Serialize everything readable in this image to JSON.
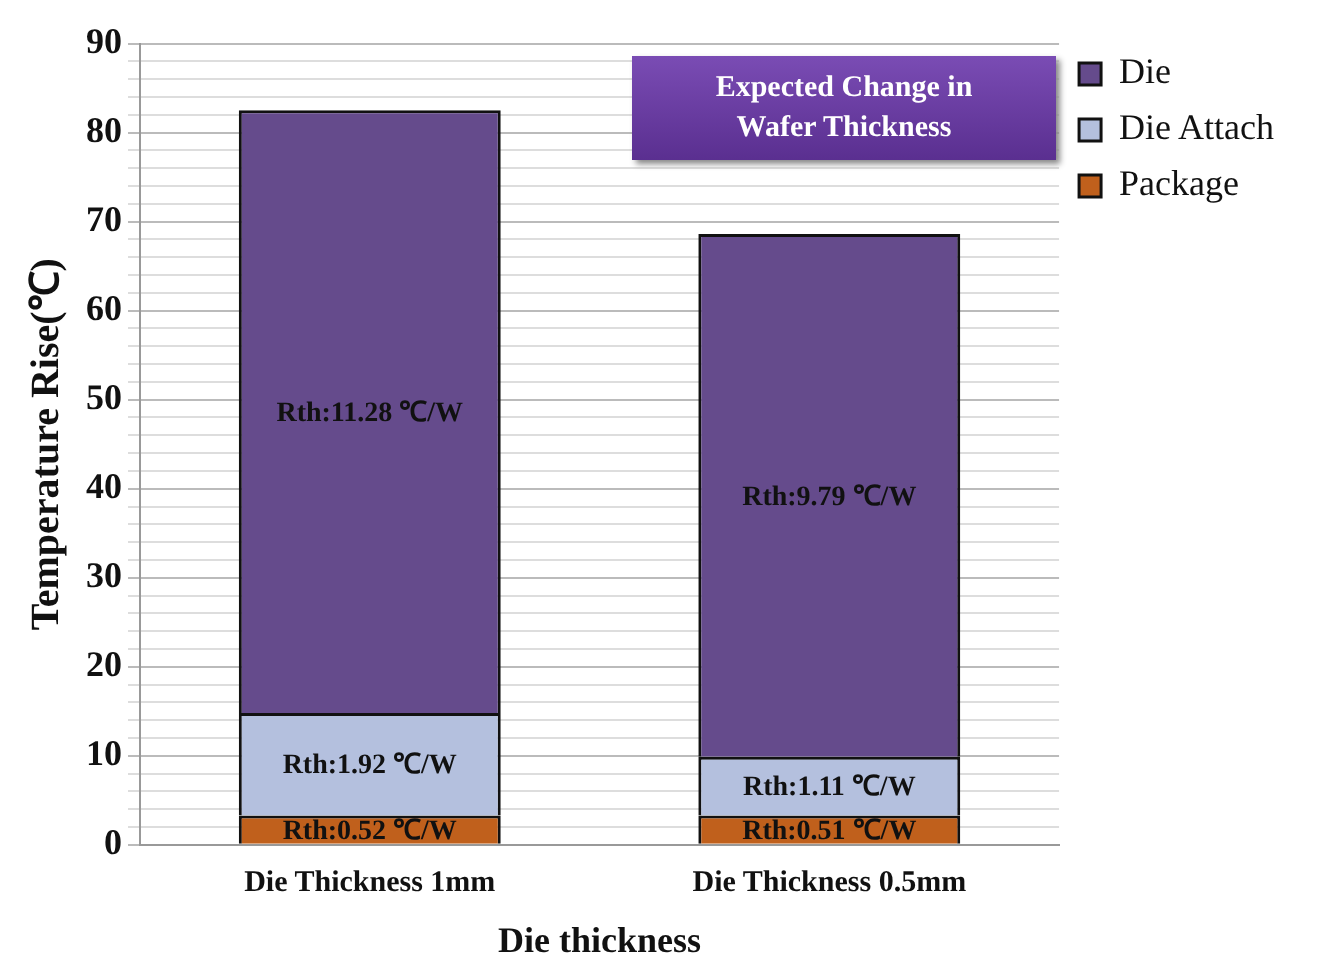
{
  "chart_data": {
    "type": "bar",
    "stacked": true,
    "xlabel": "Die thickness",
    "ylabel": "Temperature Rise(℃)",
    "categories": [
      "Die Thickness 1mm",
      "Die Thickness 0.5mm"
    ],
    "series": [
      {
        "name": "Package",
        "color": "#c0601c",
        "values": [
          3.3,
          3.3
        ]
      },
      {
        "name": "Die Attach",
        "color": "#b4c0de",
        "values": [
          11.5,
          6.6
        ]
      },
      {
        "name": "Die",
        "color": "#654b8c",
        "values": [
          67.7,
          58.7
        ]
      }
    ],
    "ylim": [
      0,
      90
    ],
    "yticks": [
      0,
      {
        "value": 2,
        "label": null
      },
      {
        "value": 4,
        "label": null
      },
      {
        "value": 6,
        "label": null
      },
      {
        "value": 8,
        "label": null
      },
      10,
      {
        "value": 12,
        "label": null
      },
      {
        "value": 14,
        "label": null
      },
      {
        "value": 16,
        "label": null
      },
      {
        "value": 18,
        "label": null
      },
      20,
      {
        "value": 22,
        "label": null
      },
      {
        "value": 24,
        "label": null
      },
      {
        "value": 26,
        "label": null
      },
      {
        "value": 28,
        "label": null
      },
      30,
      {
        "value": 32,
        "label": null
      },
      {
        "value": 34,
        "label": null
      },
      {
        "value": 36,
        "label": null
      },
      {
        "value": 38,
        "label": null
      },
      40,
      {
        "value": 42,
        "label": null
      },
      {
        "value": 44,
        "label": null
      },
      {
        "value": 46,
        "label": null
      },
      {
        "value": 48,
        "label": null
      },
      50,
      {
        "value": 52,
        "label": null
      },
      {
        "value": 54,
        "label": null
      },
      {
        "value": 56,
        "label": null
      },
      {
        "value": 58,
        "label": null
      },
      60,
      {
        "value": 62,
        "label": null
      },
      {
        "value": 64,
        "label": null
      },
      {
        "value": 66,
        "label": null
      },
      {
        "value": 68,
        "label": null
      },
      70,
      {
        "value": 72,
        "label": null
      },
      {
        "value": 74,
        "label": null
      },
      {
        "value": 76,
        "label": null
      },
      {
        "value": 78,
        "label": null
      },
      80,
      {
        "value": 82,
        "label": null
      },
      {
        "value": 84,
        "label": null
      },
      {
        "value": 86,
        "label": null
      },
      {
        "value": 88,
        "label": null
      },
      90
    ],
    "grid": "y",
    "legend": "top right",
    "annotations": [
      "Expected Change in Wafer Thickness",
      "Rth:0.52 ℃/W",
      "Rth:1.92 ℃/W",
      "Rth:11.28 ℃/W",
      "Rth:0.51 ℃/W",
      "Rth:1.11 ℃/W",
      "Rth:9.79 ℃/W"
    ]
  }
}
